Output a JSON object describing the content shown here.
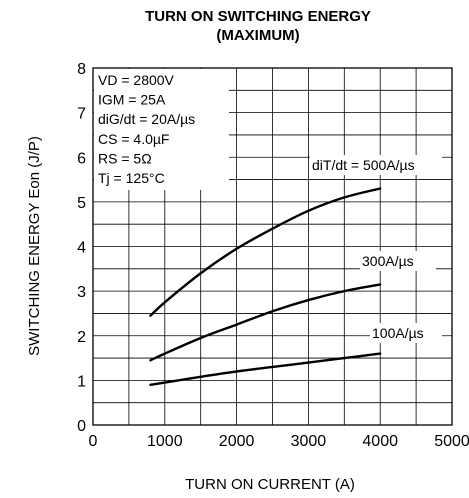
{
  "chart_data": {
    "type": "line",
    "title": [
      "TURN ON SWITCHING ENERGY",
      "(MAXIMUM)"
    ],
    "xlabel": "TURN ON CURRENT  (A)",
    "ylabel": "SWITCHING ENERGY  Eon (J/P)",
    "xlim": [
      0,
      5000
    ],
    "ylim": [
      0,
      8
    ],
    "xticks": [
      0,
      1000,
      2000,
      3000,
      4000,
      5000
    ],
    "xtick_labels": [
      "0",
      "1000",
      "2000",
      "3000",
      "4000",
      "5000"
    ],
    "yticks": [
      0,
      1,
      2,
      3,
      4,
      5,
      6,
      7,
      8
    ],
    "ytick_labels": [
      "0",
      "1",
      "2",
      "3",
      "4",
      "5",
      "6",
      "7",
      "8"
    ],
    "grid": true,
    "conditions": [
      "VD = 2800V",
      "IGM = 25A",
      "diG/dt = 20A/µs",
      "CS = 4.0µF",
      "RS = 5Ω",
      "Tj = 125°C"
    ],
    "series": [
      {
        "label": "diT/dt = 500A/µs",
        "x": [
          800,
          1000,
          1500,
          2000,
          2500,
          3000,
          3500,
          4000
        ],
        "y": [
          2.45,
          2.75,
          3.4,
          3.95,
          4.4,
          4.8,
          5.1,
          5.3
        ]
      },
      {
        "label": "300A/µs",
        "x": [
          800,
          1000,
          1500,
          2000,
          2500,
          3000,
          3500,
          4000
        ],
        "y": [
          1.45,
          1.6,
          1.95,
          2.25,
          2.55,
          2.8,
          3.0,
          3.15
        ]
      },
      {
        "label": "100A/µs",
        "x": [
          800,
          1000,
          1500,
          2000,
          2500,
          3000,
          3500,
          4000
        ],
        "y": [
          0.9,
          0.95,
          1.08,
          1.2,
          1.3,
          1.4,
          1.5,
          1.6
        ]
      }
    ]
  }
}
